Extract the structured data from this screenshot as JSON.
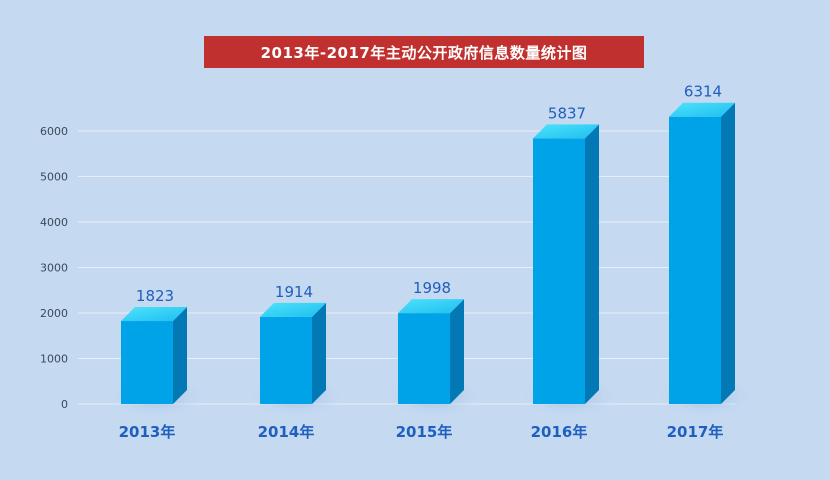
{
  "chart_data": {
    "type": "bar",
    "title": "2013年-2017年主动公开政府信息数量统计图",
    "categories": [
      "2013年",
      "2014年",
      "2015年",
      "2016年",
      "2017年"
    ],
    "values": [
      1823,
      1914,
      1998,
      5837,
      6314
    ],
    "ylim": [
      0,
      6000
    ],
    "yticks": [
      0,
      1000,
      2000,
      3000,
      4000,
      5000,
      6000
    ],
    "grid": true,
    "colors": {
      "bar_front": "#00a2e8",
      "bar_side": "#0279b5",
      "bar_top": "#2fd6f8",
      "title_bg": "#c0302f",
      "label": "#1f5fbf"
    }
  }
}
